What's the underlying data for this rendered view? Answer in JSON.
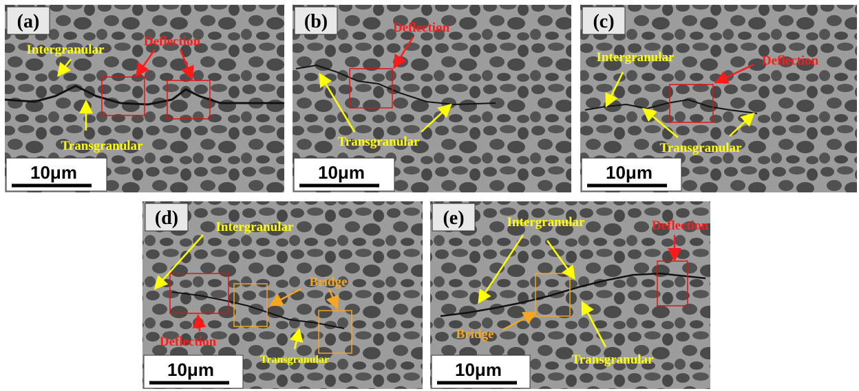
{
  "panels": [
    {
      "label": "(a)",
      "scale_bar": "10μm",
      "annotations": [
        "Intergranular",
        "Deflection",
        "Transgranular"
      ]
    },
    {
      "label": "(b)",
      "scale_bar": "10μm",
      "annotations": [
        "Deflection",
        "Transgranular"
      ]
    },
    {
      "label": "(c)",
      "scale_bar": "10μm",
      "annotations": [
        "Intergranular",
        "Deflection",
        "Transgranular"
      ]
    },
    {
      "label": "(d)",
      "scale_bar": "10μm",
      "annotations": [
        "Intergranular",
        "Bridge",
        "Deflection",
        "Transgranular"
      ]
    },
    {
      "label": "(e)",
      "scale_bar": "10μm",
      "annotations": [
        "Intergranular",
        "Deflection",
        "Bridge",
        "Transgranular"
      ]
    }
  ]
}
